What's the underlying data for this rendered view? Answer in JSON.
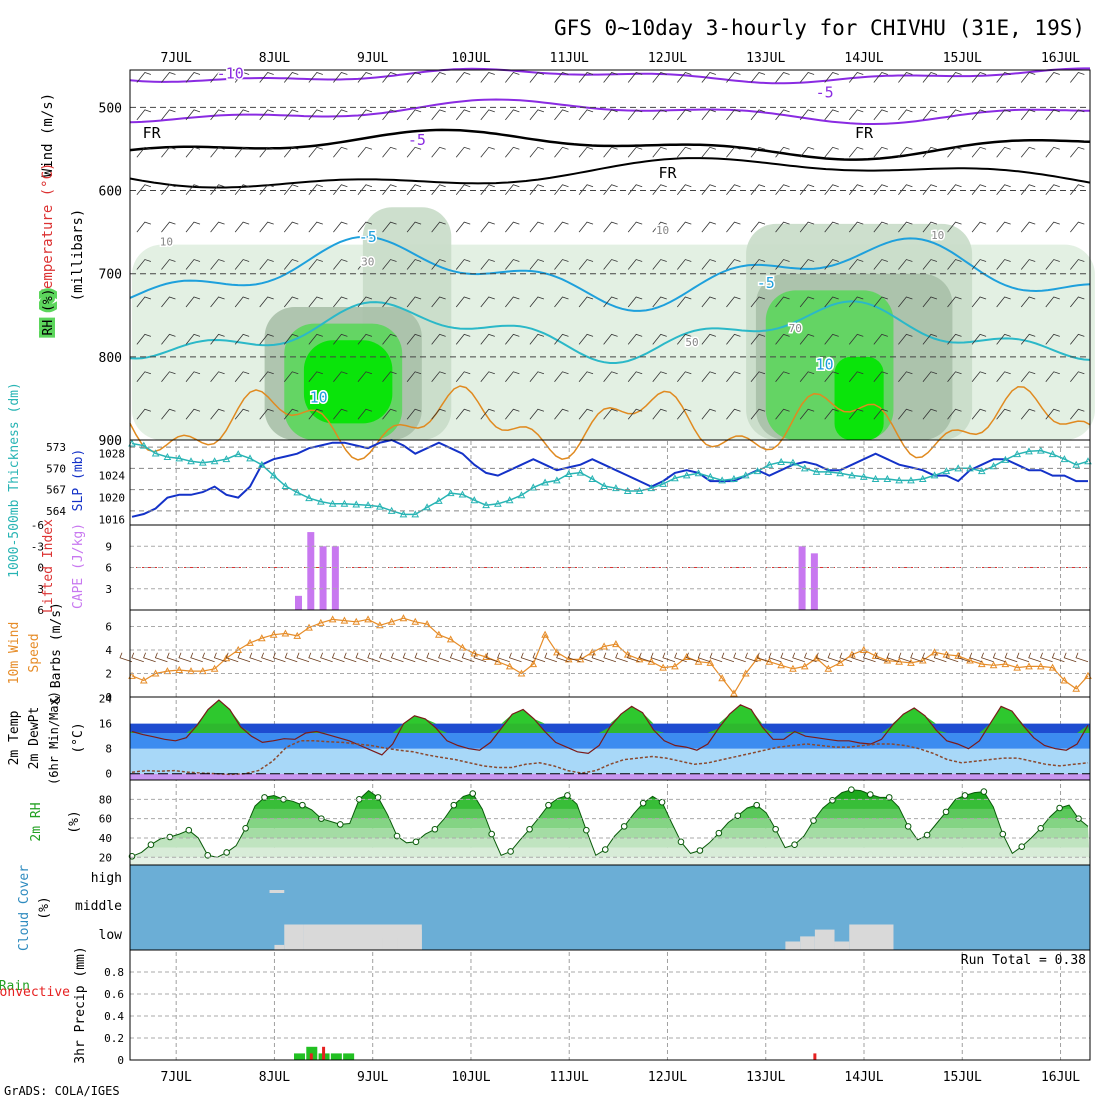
{
  "title": "GFS 0~10day 3-hourly for CHIVHU (31E, 19S)",
  "footer": "GrADS: COLA/IGES",
  "run_total_label": "Run Total = 0.38",
  "colors": {
    "rh_light": "#e0eee0",
    "rh_mid1": "#c8dcc8",
    "rh_mid2": "#a8c0a8",
    "rh_green": "#5cd65c",
    "rh_bright": "#00e600",
    "temp_neg": "#8a2be2",
    "temp_fr": "#000000",
    "temp_pos": "#1ea0dc",
    "temp_warm": "#e08a20",
    "slp": "#1432c8",
    "thickness": "#28b4b4",
    "cape": "#c878f0",
    "li": "#dc3232",
    "wind_speed": "#e68c28",
    "barb": "#6b3b1b",
    "cloud_bg": "#6baed6",
    "cloud_fill": "#d9d9d9",
    "precip_total": "#22c022",
    "precip_conv": "#e62020"
  },
  "chart_data": [
    {
      "panel": "upper-air",
      "type": "heatmap",
      "x_tick_labels": [
        "7JUL",
        "8JUL",
        "9JUL",
        "10JUL",
        "11JUL",
        "12JUL",
        "13JUL",
        "14JUL",
        "15JUL",
        "16JUL"
      ],
      "ylabel_parts": {
        "rh": "RH (%)",
        "temp": "Temperature (°C)",
        "wind": "Wind (m/s)",
        "pres": "(millibars)"
      },
      "y_tick_labels": [
        "500",
        "600",
        "700",
        "800",
        "900"
      ],
      "ylim": [
        900,
        455
      ],
      "contour_labels": [
        {
          "text": "-10",
          "day": 7.55,
          "p": 465,
          "series": "temp_neg"
        },
        {
          "text": "-5",
          "day": 13.6,
          "p": 488,
          "series": "temp_neg"
        },
        {
          "text": "-5",
          "day": 9.45,
          "p": 545,
          "series": "temp_neg"
        },
        {
          "text": "FR",
          "day": 6.75,
          "p": 537,
          "series": "temp_fr"
        },
        {
          "text": "FR",
          "day": 14.0,
          "p": 537,
          "series": "temp_fr"
        },
        {
          "text": "FR",
          "day": 12.0,
          "p": 585,
          "series": "temp_fr"
        },
        {
          "text": "-5",
          "day": 8.95,
          "p": 662,
          "series": "temp_pos"
        },
        {
          "text": "-5",
          "day": 13.0,
          "p": 717,
          "series": "temp_pos"
        },
        {
          "text": "10",
          "day": 8.45,
          "p": 855,
          "series": "temp_pos"
        },
        {
          "text": "10",
          "day": 13.6,
          "p": 815,
          "series": "temp_pos"
        },
        {
          "text": "10",
          "day": 6.9,
          "p": 666,
          "series": "rh"
        },
        {
          "text": "30",
          "day": 8.95,
          "p": 690,
          "series": "rh"
        },
        {
          "text": "10",
          "day": 11.95,
          "p": 652,
          "series": "rh"
        },
        {
          "text": "10",
          "day": 14.75,
          "p": 658,
          "series": "rh"
        },
        {
          "text": "70",
          "day": 13.3,
          "p": 770,
          "series": "rh"
        },
        {
          "text": "50",
          "day": 12.25,
          "p": 787,
          "series": "rh"
        }
      ]
    },
    {
      "panel": "thickness-slp",
      "type": "line",
      "ylabel_left": "1000-500mb Thickness (dm)",
      "ylabel_right": "SLP (mb)",
      "left_ticks": [
        "573",
        "570",
        "567",
        "564"
      ],
      "right_ticks": [
        "1028",
        "1024",
        "1020",
        "1016"
      ],
      "ylim_thickness": [
        562,
        574
      ],
      "ylim_slp": [
        1015,
        1030.5
      ],
      "series": [
        {
          "name": "SLP",
          "unit": "mb",
          "values": [
            1016.5,
            1017,
            1018,
            1020,
            1020.5,
            1020.5,
            1021,
            1022,
            1020.5,
            1020,
            1022,
            1026,
            1027,
            1027.5,
            1028,
            1029,
            1029.5,
            1030,
            1030,
            1029.5,
            1029,
            1030,
            1030.5,
            1029.5,
            1028,
            1029,
            1030,
            1029,
            1028,
            1026,
            1024.5,
            1024,
            1025,
            1026,
            1027,
            1026,
            1025,
            1025.5,
            1026,
            1027,
            1026,
            1025,
            1024,
            1023,
            1022,
            1023,
            1024.5,
            1025,
            1024.5,
            1023,
            1023,
            1023,
            1024,
            1025,
            1024,
            1025,
            1026,
            1026.5,
            1026,
            1025,
            1025,
            1026,
            1027,
            1028,
            1027,
            1026,
            1025.5,
            1025,
            1024,
            1024,
            1023,
            1025,
            1026,
            1027,
            1027,
            1026,
            1025,
            1025,
            1024,
            1024,
            1023,
            1023
          ]
        },
        {
          "name": "Thickness",
          "unit": "dm",
          "values": [
            573.5,
            573.2,
            572.1,
            571.6,
            571.4,
            571.0,
            570.8,
            571.0,
            571.3,
            572.0,
            571.4,
            570.5,
            569.0,
            567.5,
            566.6,
            565.8,
            565.3,
            565.0,
            565.0,
            564.9,
            564.8,
            564.6,
            564.0,
            563.5,
            563.5,
            564.5,
            565.4,
            566.5,
            566.3,
            565.5,
            564.8,
            565.0,
            565.5,
            566.2,
            567.3,
            568.0,
            568.3,
            569.2,
            569.4,
            568.5,
            567.5,
            567.2,
            566.8,
            566.8,
            567.2,
            567.8,
            568.6,
            569.0,
            569.3,
            568.8,
            568.3,
            568.5,
            569.0,
            569.6,
            570.5,
            570.9,
            570.8,
            570.0,
            569.5,
            569.5,
            569.3,
            569.0,
            568.8,
            568.5,
            568.5,
            568.3,
            568.3,
            568.5,
            569.0,
            569.6,
            570.0,
            570.0,
            569.6,
            570.3,
            571.2,
            572.0,
            572.4,
            572.5,
            572.0,
            571.3,
            570.5,
            571.0
          ]
        }
      ]
    },
    {
      "panel": "cape-li",
      "type": "bar",
      "ylabel_left": "Lifted Index",
      "ylabel_right": "CAPE (J/kg)",
      "left_ticks": [
        "-6",
        "-3",
        "0",
        "3",
        "6"
      ],
      "right_ticks": [
        "9",
        "6",
        "3"
      ],
      "li_ylim": [
        6,
        -6
      ],
      "cape_ylim": [
        0,
        12
      ],
      "cape_bars": [
        {
          "day": 8.25,
          "value": 2
        },
        {
          "day": 8.375,
          "value": 11
        },
        {
          "day": 8.5,
          "value": 9
        },
        {
          "day": 8.625,
          "value": 9
        },
        {
          "day": 13.375,
          "value": 9
        },
        {
          "day": 13.5,
          "value": 8
        }
      ],
      "li_reference": 0
    },
    {
      "panel": "wind10m",
      "type": "line",
      "ylabel": "10m Wind Speed & Barbs (m/s)",
      "y_ticks": [
        "6",
        "4",
        "2",
        "0"
      ],
      "ylim": [
        0,
        7.4
      ],
      "series": [
        {
          "name": "Wind Speed",
          "values": [
            1.8,
            1.4,
            2.0,
            2.2,
            2.3,
            2.2,
            2.2,
            2.4,
            3.3,
            4.0,
            4.6,
            5.0,
            5.3,
            5.4,
            5.2,
            5.9,
            6.3,
            6.6,
            6.5,
            6.4,
            6.6,
            6.1,
            6.4,
            6.7,
            6.4,
            6.2,
            5.3,
            4.9,
            4.2,
            3.7,
            3.4,
            3.0,
            2.6,
            2.0,
            2.8,
            5.3,
            3.8,
            3.2,
            3.2,
            3.8,
            4.3,
            4.5,
            3.6,
            3.2,
            3.0,
            2.5,
            2.6,
            3.4,
            3.0,
            2.9,
            1.6,
            0.3,
            2.0,
            3.3,
            3.0,
            2.7,
            2.4,
            2.6,
            3.3,
            2.4,
            2.9,
            3.6,
            4.0,
            3.5,
            3.1,
            3.0,
            2.9,
            3.1,
            3.8,
            3.6,
            3.5,
            3.1,
            2.8,
            2.7,
            2.8,
            2.5,
            2.6,
            2.6,
            2.5,
            1.4,
            0.7,
            1.8
          ]
        }
      ]
    },
    {
      "panel": "temp2m",
      "type": "line",
      "ylabel": "2m Temp 2m DewPt (6hr Min/Max) (°C)",
      "y_ticks": [
        "24",
        "16",
        "8",
        "0"
      ],
      "ylim": [
        -2,
        24.5
      ],
      "series": [
        {
          "name": "2m Temp",
          "values": [
            13.5,
            12.5,
            11.8,
            11.0,
            10.5,
            11.5,
            15.5,
            20.5,
            23.5,
            20.5,
            15.0,
            12.0,
            10.0,
            10.5,
            11.2,
            11.0,
            13.0,
            13.5,
            12.5,
            11.5,
            10.5,
            9.0,
            7.5,
            6.0,
            9.5,
            16.0,
            18.5,
            17.5,
            14.5,
            10.5,
            9.0,
            8.0,
            7.5,
            10.0,
            14.5,
            19.0,
            20.5,
            17.5,
            13.5,
            10.0,
            8.5,
            7.0,
            6.5,
            9.0,
            15.0,
            19.0,
            21.5,
            19.5,
            14.0,
            10.5,
            9.0,
            8.5,
            7.5,
            9.5,
            14.5,
            19.0,
            22.0,
            20.5,
            15.0,
            11.0,
            11.0,
            13.5,
            12.0,
            11.5,
            11.0,
            10.5,
            10.5,
            9.8,
            9.5,
            11.0,
            15.5,
            19.0,
            21.0,
            18.5,
            14.0,
            10.5,
            9.5,
            8.0,
            10.5,
            16.0,
            21.5,
            20.0,
            15.5,
            11.5,
            9.0,
            8.0,
            7.5,
            9.5,
            15.5
          ]
        },
        {
          "name": "2m DewPt",
          "values": [
            0.5,
            1.0,
            0.8,
            1.0,
            0.5,
            0.2,
            0.0,
            -0.2,
            0.0,
            1.0,
            4.0,
            8.5,
            10.5,
            10.5,
            10.2,
            10.0,
            9.5,
            9.0,
            8.2,
            7.5,
            7.0,
            6.0,
            5.2,
            4.5,
            3.5,
            2.5,
            2.0,
            2.0,
            3.0,
            3.5,
            2.5,
            1.0,
            0.2,
            1.0,
            3.0,
            4.5,
            5.0,
            5.5,
            5.0,
            4.0,
            3.0,
            3.5,
            4.5,
            5.5,
            6.5,
            7.5,
            8.5,
            9.0,
            9.5,
            9.0,
            8.5,
            8.5,
            9.0,
            9.5,
            9.5,
            9.0,
            8.0,
            6.5,
            4.5,
            3.5,
            4.0,
            4.5,
            5.0,
            5.0,
            4.0,
            3.0,
            2.5,
            3.0,
            3.5
          ]
        }
      ]
    },
    {
      "panel": "rh2m",
      "type": "area",
      "ylabel": "2m RH (%)",
      "y_ticks": [
        "80",
        "60",
        "40",
        "20"
      ],
      "ylim": [
        12,
        100
      ],
      "series": [
        {
          "name": "2m RH",
          "values": [
            21,
            25,
            33,
            39,
            41,
            44,
            48,
            40,
            22,
            20,
            25,
            32,
            50,
            73,
            82,
            84,
            80,
            78,
            74,
            69,
            60,
            57,
            54,
            55,
            80,
            89,
            82,
            64,
            42,
            35,
            36,
            44,
            49,
            60,
            74,
            83,
            86,
            70,
            44,
            22,
            26,
            38,
            49,
            61,
            74,
            81,
            84,
            75,
            48,
            22,
            28,
            42,
            52,
            65,
            76,
            83,
            77,
            56,
            36,
            24,
            27,
            35,
            45,
            56,
            63,
            71,
            74,
            66,
            49,
            30,
            33,
            42,
            58,
            71,
            79,
            87,
            90,
            89,
            85,
            82,
            82,
            72,
            52,
            38,
            43,
            55,
            67,
            80,
            84,
            87,
            88,
            72,
            44,
            24,
            31,
            40,
            50,
            62,
            71,
            74,
            60,
            52
          ]
        }
      ]
    },
    {
      "panel": "cloud",
      "type": "bar",
      "ylabel": "Cloud Cover (%)",
      "layer_labels": [
        "high",
        "middle",
        "low"
      ]
    },
    {
      "panel": "precip",
      "type": "bar",
      "ylabel_left": "Total / Rain Convective",
      "ylabel_right": "3hr Precip (mm)",
      "y_ticks": [
        "0.8",
        "0.6",
        "0.4",
        "0.2",
        "0"
      ],
      "ylim": [
        0,
        1.0
      ],
      "total_bars": [
        {
          "day": 8.25,
          "value": 0.06
        },
        {
          "day": 8.375,
          "value": 0.12
        },
        {
          "day": 8.5,
          "value": 0.06
        },
        {
          "day": 8.625,
          "value": 0.06
        },
        {
          "day": 8.75,
          "value": 0.06
        }
      ],
      "convective_bars": [
        {
          "day": 8.375,
          "value": 0.06
        },
        {
          "day": 8.5,
          "value": 0.12
        },
        {
          "day": 13.5,
          "value": 0.06
        }
      ]
    }
  ]
}
